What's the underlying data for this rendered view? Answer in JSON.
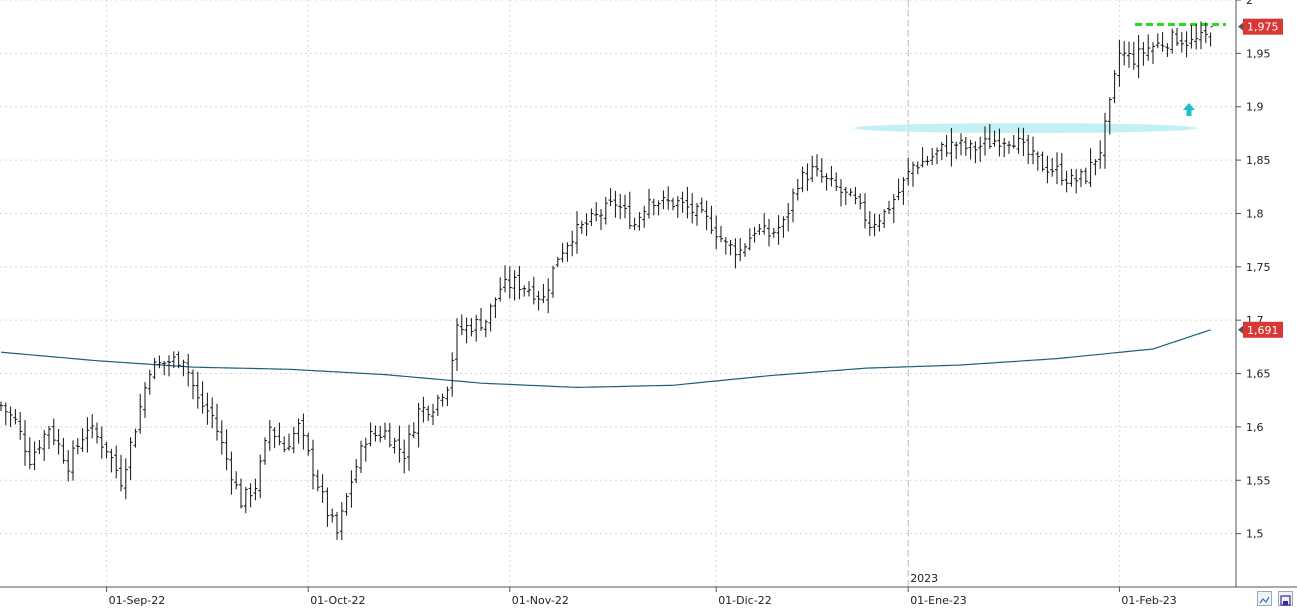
{
  "chart_data": {
    "type": "ohlc",
    "title": "",
    "xlabel": "",
    "ylabel": "",
    "ylim": [
      1.45,
      2.0
    ],
    "y_ticks": [
      2,
      1.95,
      1.9,
      1.85,
      1.8,
      1.75,
      1.7,
      1.65,
      1.6,
      1.55,
      1.5
    ],
    "y_tick_labels": [
      "2",
      "1,95",
      "1,9",
      "1,85",
      "1,8",
      "1,75",
      "1,7",
      "1,65",
      "1,6",
      "1,55",
      "1,5"
    ],
    "x_ticks": [
      {
        "label": "01-Sep-22",
        "index": 22
      },
      {
        "label": "01-Oct-22",
        "index": 64
      },
      {
        "label": "01-Nov-22",
        "index": 106
      },
      {
        "label": "01-Dic-22",
        "index": 149
      },
      {
        "label": "01-Ene-23",
        "index": 189
      },
      {
        "label": "01-Feb-23",
        "index": 233
      }
    ],
    "year_marker": {
      "label": "2023",
      "index": 189
    },
    "grid": true,
    "last_price": {
      "value": 1.975,
      "label": "1,975",
      "color": "#d93636"
    },
    "ma_price": {
      "value": 1.691,
      "label": "1,691",
      "color": "#d93636"
    },
    "ma_color": "#1f5f7a",
    "bar_color": "#111111",
    "resistance_level": {
      "value": 1.977,
      "color": "#22dd22"
    },
    "support_zone": {
      "value": 1.88,
      "color": "#bdeef4"
    },
    "arrow_color": "#1fc0c8",
    "anchors": [
      [
        0,
        1.62
      ],
      [
        3,
        1.605
      ],
      [
        6,
        1.57
      ],
      [
        10,
        1.6
      ],
      [
        14,
        1.565
      ],
      [
        18,
        1.6
      ],
      [
        22,
        1.58
      ],
      [
        25,
        1.55
      ],
      [
        28,
        1.6
      ],
      [
        31,
        1.655
      ],
      [
        34,
        1.66
      ],
      [
        38,
        1.665
      ],
      [
        41,
        1.625
      ],
      [
        44,
        1.61
      ],
      [
        47,
        1.57
      ],
      [
        50,
        1.53
      ],
      [
        53,
        1.545
      ],
      [
        56,
        1.6
      ],
      [
        59,
        1.58
      ],
      [
        62,
        1.6
      ],
      [
        65,
        1.56
      ],
      [
        68,
        1.52
      ],
      [
        70,
        1.5
      ],
      [
        73,
        1.55
      ],
      [
        76,
        1.59
      ],
      [
        80,
        1.595
      ],
      [
        84,
        1.575
      ],
      [
        87,
        1.615
      ],
      [
        90,
        1.62
      ],
      [
        93,
        1.64
      ],
      [
        95,
        1.69
      ],
      [
        98,
        1.695
      ],
      [
        101,
        1.7
      ],
      [
        104,
        1.73
      ],
      [
        107,
        1.735
      ],
      [
        110,
        1.73
      ],
      [
        113,
        1.72
      ],
      [
        116,
        1.76
      ],
      [
        119,
        1.78
      ],
      [
        122,
        1.79
      ],
      [
        125,
        1.8
      ],
      [
        128,
        1.81
      ],
      [
        132,
        1.79
      ],
      [
        135,
        1.815
      ],
      [
        138,
        1.81
      ],
      [
        141,
        1.81
      ],
      [
        145,
        1.8
      ],
      [
        148,
        1.79
      ],
      [
        151,
        1.77
      ],
      [
        154,
        1.765
      ],
      [
        157,
        1.785
      ],
      [
        160,
        1.78
      ],
      [
        163,
        1.79
      ],
      [
        166,
        1.83
      ],
      [
        169,
        1.84
      ],
      [
        172,
        1.83
      ],
      [
        175,
        1.82
      ],
      [
        178,
        1.81
      ],
      [
        181,
        1.79
      ],
      [
        184,
        1.8
      ],
      [
        187,
        1.82
      ],
      [
        190,
        1.845
      ],
      [
        193,
        1.85
      ],
      [
        196,
        1.86
      ],
      [
        199,
        1.865
      ],
      [
        202,
        1.86
      ],
      [
        205,
        1.865
      ],
      [
        208,
        1.87
      ],
      [
        211,
        1.87
      ],
      [
        214,
        1.855
      ],
      [
        217,
        1.845
      ],
      [
        220,
        1.84
      ],
      [
        223,
        1.83
      ],
      [
        226,
        1.835
      ],
      [
        229,
        1.86
      ],
      [
        231,
        1.9
      ],
      [
        233,
        1.95
      ],
      [
        236,
        1.945
      ],
      [
        239,
        1.955
      ],
      [
        242,
        1.96
      ],
      [
        245,
        1.965
      ],
      [
        248,
        1.96
      ],
      [
        251,
        1.965
      ]
    ],
    "ma_points": [
      [
        0,
        1.67
      ],
      [
        20,
        1.662
      ],
      [
        40,
        1.656
      ],
      [
        60,
        1.654
      ],
      [
        80,
        1.649
      ],
      [
        100,
        1.641
      ],
      [
        120,
        1.637
      ],
      [
        140,
        1.639
      ],
      [
        160,
        1.648
      ],
      [
        180,
        1.655
      ],
      [
        200,
        1.658
      ],
      [
        220,
        1.664
      ],
      [
        240,
        1.673
      ],
      [
        252,
        1.691
      ]
    ]
  }
}
